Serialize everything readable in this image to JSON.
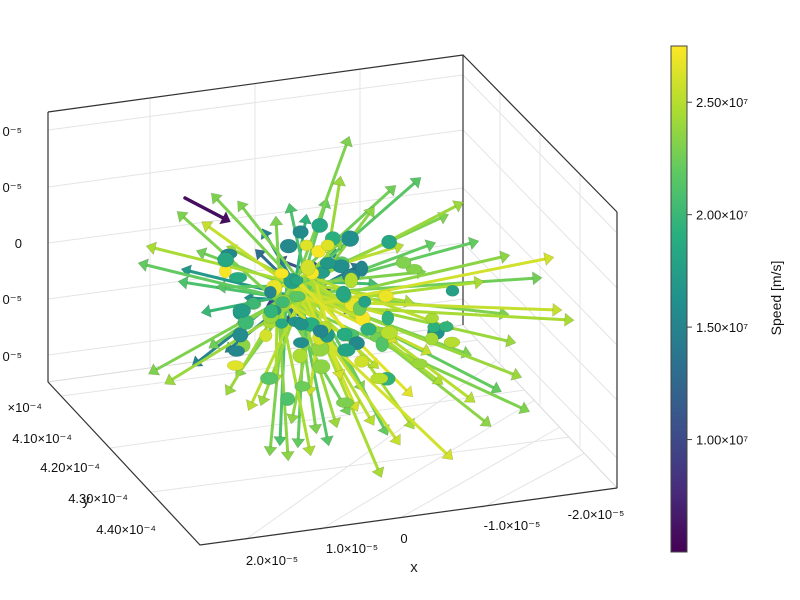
{
  "chart_data": {
    "type": "3d-arrows",
    "axes": {
      "x": {
        "label": "x",
        "ticks": [
          "2.0×10⁻⁵",
          "1.0×10⁻⁵",
          "0",
          "-1.0×10⁻⁵",
          "-2.0×10⁻⁵"
        ],
        "tick_values": [
          2e-05,
          1e-05,
          0,
          -1e-05,
          -2e-05
        ]
      },
      "y": {
        "label": "y",
        "ticks": [
          "×10⁻⁴",
          "4.10×10⁻⁴",
          "4.20×10⁻⁴",
          "4.30×10⁻⁴",
          "4.40×10⁻⁴"
        ],
        "tick_values": [
          0.0004,
          0.00041,
          0.00042,
          0.00043,
          0.00044
        ]
      },
      "z": {
        "label": "",
        "ticks": [
          "0⁻⁵",
          "0⁻⁵",
          "0",
          "0⁻⁵",
          "0⁻⁵"
        ],
        "tick_values": [
          2e-05,
          1e-05,
          0,
          -1e-05,
          -2e-05
        ]
      }
    },
    "colorbar": {
      "label": "Speed [m/s]",
      "colormap": "viridis",
      "range": [
        5000000.0,
        27500000.0
      ],
      "ticks": [
        "1.00×10⁷",
        "1.50×10⁷",
        "2.00×10⁷",
        "2.50×10⁷"
      ],
      "tick_values": [
        10000000.0,
        15000000.0,
        20000000.0,
        25000000.0
      ]
    },
    "arrows": [
      {
        "dir": [
          -150,
          -45
        ],
        "speed": 24500000.0
      },
      {
        "dir": [
          -120,
          -78
        ],
        "speed": 23000000.0
      },
      {
        "dir": [
          -95,
          -68
        ],
        "speed": 25500000.0
      },
      {
        "dir": [
          -158,
          -28
        ],
        "speed": 22000000.0
      },
      {
        "dir": [
          -115,
          -22
        ],
        "speed": 17000000.0
      },
      {
        "dir": [
          -70,
          -44
        ],
        "speed": 24000000.0
      },
      {
        "dir": [
          -80,
          -5
        ],
        "speed": 21500000.0
      },
      {
        "dir": [
          -52,
          6
        ],
        "speed": 16000000.0
      },
      {
        "dir": [
          -60,
          30
        ],
        "speed": 23500000.0
      },
      {
        "dir": [
          -148,
          80
        ],
        "speed": 23000000.0
      },
      {
        "dir": [
          -132,
          90
        ],
        "speed": 24000000.0
      },
      {
        "dir": [
          -105,
          72
        ],
        "speed": 15000000.0
      },
      {
        "dir": [
          -88,
          54
        ],
        "speed": 22500000.0
      },
      {
        "dir": [
          -72,
          58
        ],
        "speed": 14500000.0
      },
      {
        "dir": [
          -50,
          115
        ],
        "speed": 25000000.0
      },
      {
        "dir": [
          -38,
          110
        ],
        "speed": 24000000.0
      },
      {
        "dir": [
          -30,
          160
        ],
        "speed": 23000000.0
      },
      {
        "dir": [
          -20,
          150
        ],
        "speed": 21000000.0
      },
      {
        "dir": [
          -12,
          165
        ],
        "speed": 23500000.0
      },
      {
        "dir": [
          -2,
          152
        ],
        "speed": 22000000.0
      },
      {
        "dir": [
          10,
          160
        ],
        "speed": 24500000.0
      },
      {
        "dir": [
          16,
          138
        ],
        "speed": 23000000.0
      },
      {
        "dir": [
          28,
          150
        ],
        "speed": 21500000.0
      },
      {
        "dir": [
          36,
          132
        ],
        "speed": 24000000.0
      },
      {
        "dir": [
          48,
          120
        ],
        "speed": 22500000.0
      },
      {
        "dir": [
          56,
          116
        ],
        "speed": 26000000.0
      },
      {
        "dir": [
          62,
          96
        ],
        "speed": 23000000.0
      },
      {
        "dir": [
          72,
          130
        ],
        "speed": 25000000.0
      },
      {
        "dir": [
          86,
          140
        ],
        "speed": 22000000.0
      },
      {
        "dir": [
          98,
          150
        ],
        "speed": 25500000.0
      },
      {
        "dir": [
          112,
          134
        ],
        "speed": 24500000.0
      },
      {
        "dir": [
          150,
          165
        ],
        "speed": 26000000.0
      },
      {
        "dir": [
          188,
          132
        ],
        "speed": 23500000.0
      },
      {
        "dir": [
          198,
          98
        ],
        "speed": 22000000.0
      },
      {
        "dir": [
          172,
          108
        ],
        "speed": 25000000.0
      },
      {
        "dir": [
          140,
          90
        ],
        "speed": 24500000.0
      },
      {
        "dir": [
          218,
          84
        ],
        "speed": 24000000.0
      },
      {
        "dir": [
          168,
          62
        ],
        "speed": 23000000.0
      },
      {
        "dir": [
          128,
          60
        ],
        "speed": 25500000.0
      },
      {
        "dir": [
          94,
          48
        ],
        "speed": 26000000.0
      },
      {
        "dir": [
          212,
          50
        ],
        "speed": 24000000.0
      },
      {
        "dir": [
          270,
          28
        ],
        "speed": 24500000.0
      },
      {
        "dir": [
          258,
          18
        ],
        "speed": 25500000.0
      },
      {
        "dir": [
          205,
          22
        ],
        "speed": 23000000.0
      },
      {
        "dir": [
          150,
          36
        ],
        "speed": 25000000.0
      },
      {
        "dir": [
          238,
          -14
        ],
        "speed": 22500000.0
      },
      {
        "dir": [
          250,
          -34
        ],
        "speed": 26000000.0
      },
      {
        "dir": [
          206,
          -36
        ],
        "speed": 23500000.0
      },
      {
        "dir": [
          175,
          -50
        ],
        "speed": 22000000.0
      },
      {
        "dir": [
          160,
          -88
        ],
        "speed": 24000000.0
      },
      {
        "dir": [
          145,
          -76
        ],
        "speed": 23000000.0
      },
      {
        "dir": [
          118,
          -112
        ],
        "speed": 21500000.0
      },
      {
        "dir": [
          93,
          -104
        ],
        "speed": 22500000.0
      },
      {
        "dir": [
          72,
          -82
        ],
        "speed": 23500000.0
      },
      {
        "dir": [
          40,
          -112
        ],
        "speed": 24000000.0
      },
      {
        "dir": [
          26,
          -90
        ],
        "speed": 22000000.0
      },
      {
        "dir": [
          6,
          -74
        ],
        "speed": 19500000.0
      },
      {
        "dir": [
          -10,
          -85
        ],
        "speed": 21000000.0
      },
      {
        "dir": [
          -24,
          -72
        ],
        "speed": 23000000.0
      },
      {
        "dir": [
          -36,
          -60
        ],
        "speed": 15000000.0
      },
      {
        "dir": [
          -42,
          -40
        ],
        "speed": 13000000.0
      },
      {
        "dir": [
          -20,
          -32
        ],
        "speed": 10500000.0
      },
      {
        "dir": [
          14,
          -28
        ],
        "speed": 11000000.0
      },
      {
        "dir": [
          34,
          -40
        ],
        "speed": 15500000.0
      },
      {
        "dir": [
          58,
          -26
        ],
        "speed": 14000000.0
      },
      {
        "dir": [
          74,
          -8
        ],
        "speed": 20500000.0
      },
      {
        "dir": [
          50,
          18
        ],
        "speed": 16000000.0
      },
      {
        "dir": [
          20,
          34
        ],
        "speed": 13500000.0
      },
      {
        "dir": [
          -14,
          30
        ],
        "speed": 12000000.0
      },
      {
        "dir": [
          -30,
          12
        ],
        "speed": 9000000.0
      },
      {
        "dir": [
          -6,
          12
        ],
        "speed": 7500000.0
      },
      {
        "dir": [
          28,
          -2
        ],
        "speed": 8000000.0
      },
      {
        "dir": [
          90,
          24
        ],
        "speed": 25500000.0
      },
      {
        "dir": [
          110,
          10
        ],
        "speed": 24500000.0
      },
      {
        "dir": [
          122,
          -20
        ],
        "speed": 23000000.0
      },
      {
        "dir": [
          100,
          -46
        ],
        "speed": 25000000.0
      },
      {
        "dir": [
          132,
          -48
        ],
        "speed": 22000000.0
      },
      {
        "dir": [
          -62,
          82
        ],
        "speed": 23000000.0
      },
      {
        "dir": [
          -24,
          88
        ],
        "speed": 24500000.0
      },
      {
        "dir": [
          10,
          100
        ],
        "speed": 25500000.0
      },
      {
        "dir": [
          40,
          84
        ],
        "speed": 26000000.0
      },
      {
        "dir": [
          76,
          74
        ],
        "speed": 25000000.0
      },
      {
        "dir": [
          110,
          102
        ],
        "speed": 26500000.0
      },
      {
        "dir": [
          60,
          52
        ],
        "speed": 25500000.0
      },
      {
        "dir": [
          -95,
          20
        ],
        "speed": 20000000.0
      },
      {
        "dir": [
          -100,
          -40
        ],
        "speed": 22500000.0
      },
      {
        "dir": [
          -60,
          -88
        ],
        "speed": 23000000.0
      },
      {
        "dir": [
          180,
          -10
        ],
        "speed": 24500000.0
      },
      {
        "dir": [
          226,
          118
        ],
        "speed": 23000000.0
      },
      {
        "dir": [
          80,
          182
        ],
        "speed": 24500000.0
      },
      {
        "dir": [
          -8,
          128
        ],
        "speed": 23500000.0
      },
      {
        "dir": [
          -118,
          -10
        ],
        "speed": 21000000.0
      },
      {
        "dir": [
          -86,
          -96
        ],
        "speed": 23000000.0
      },
      {
        "dir": [
          48,
          -152
        ],
        "speed": 23000000.0
      },
      {
        "dir": [
          40,
          -50
        ],
        "speed": 23500000.0
      },
      {
        "dir": [
          -72,
          100
        ],
        "speed": 24000000.0
      }
    ],
    "outlier": {
      "dir": [
        -120,
        -105
      ],
      "speed": 5800000.0
    }
  }
}
